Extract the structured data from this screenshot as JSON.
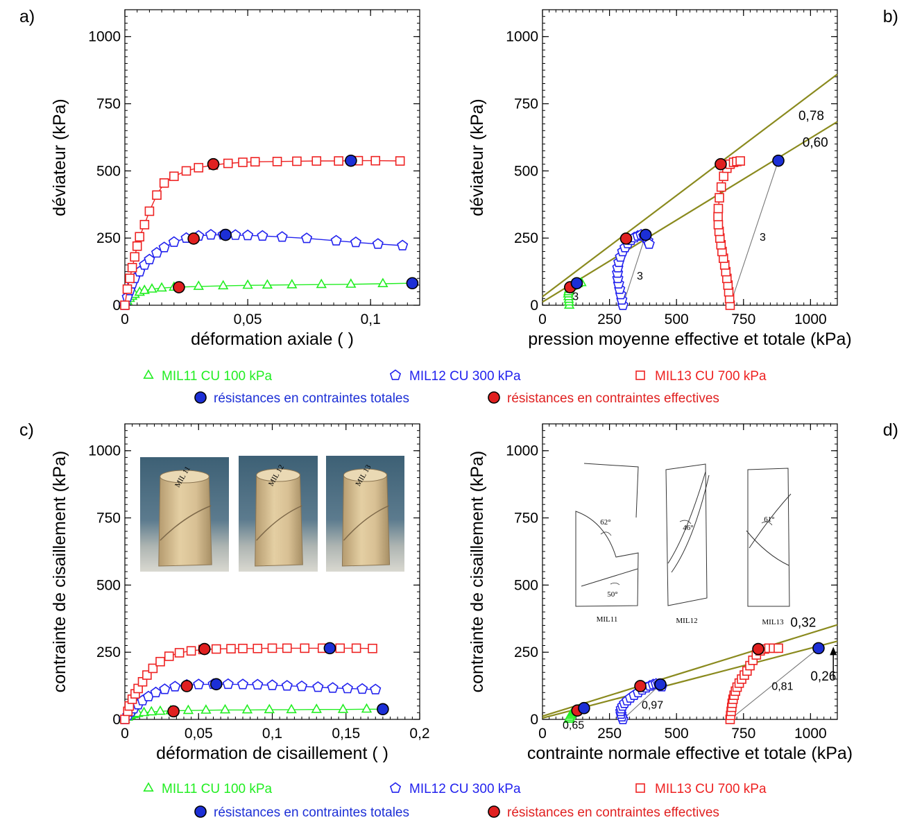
{
  "colors": {
    "MIL11": "#22ee22",
    "MIL12": "#2222ee",
    "MIL13": "#ee2222",
    "total": "#1c2fd6",
    "effective": "#e02020",
    "envelope": "#8a8a1e",
    "pointer": "#777777"
  },
  "legend": {
    "mil11": "MIL11  CU  100 kPa",
    "mil12": "MIL12  CU  300 kPa",
    "mil13": "MIL13  CU  700 kPa",
    "total": "résistances en contraintes totales",
    "effective": "résistances en contraintes effectives"
  },
  "chart_data": [
    {
      "id": "a",
      "panel_label": "a)",
      "type": "line",
      "xlabel": "déformation axiale ( )",
      "ylabel": "déviateur (kPa)",
      "xlim": [
        0,
        0.12
      ],
      "ylim": [
        0,
        1100
      ],
      "xticks": [
        0,
        0.05,
        0.1
      ],
      "xticklabels": [
        "0",
        "0,05",
        "0,1"
      ],
      "yticks": [
        0,
        250,
        500,
        750,
        1000
      ],
      "yticklabels": [
        "0",
        "250",
        "500",
        "750",
        "1000"
      ],
      "series": [
        {
          "name": "MIL11  CU  100 kPa",
          "key": "MIL11",
          "marker": "triangle",
          "x": [
            0,
            0.001,
            0.002,
            0.003,
            0.004,
            0.006,
            0.008,
            0.011,
            0.015,
            0.02,
            0.03,
            0.04,
            0.05,
            0.058,
            0.068,
            0.08,
            0.092,
            0.105,
            0.117
          ],
          "y": [
            0,
            15,
            25,
            33,
            40,
            48,
            55,
            60,
            64,
            67,
            70,
            72,
            74,
            75,
            76,
            77,
            78,
            80,
            82
          ]
        },
        {
          "name": "MIL12  CU  300 kPa",
          "key": "MIL12",
          "marker": "pentagon",
          "x": [
            0,
            0.001,
            0.002,
            0.003,
            0.004,
            0.006,
            0.008,
            0.01,
            0.013,
            0.016,
            0.02,
            0.025,
            0.03,
            0.035,
            0.04,
            0.045,
            0.05,
            0.056,
            0.064,
            0.074,
            0.086,
            0.094,
            0.103,
            0.113
          ],
          "y": [
            0,
            30,
            55,
            80,
            100,
            125,
            150,
            170,
            195,
            215,
            235,
            250,
            258,
            262,
            262,
            261,
            260,
            258,
            254,
            249,
            240,
            234,
            228,
            222
          ]
        },
        {
          "name": "MIL13  CU  700 kPa",
          "key": "MIL13",
          "marker": "square",
          "x": [
            0,
            0.001,
            0.002,
            0.003,
            0.004,
            0.005,
            0.006,
            0.008,
            0.01,
            0.013,
            0.016,
            0.02,
            0.025,
            0.03,
            0.036,
            0.042,
            0.048,
            0.053,
            0.062,
            0.07,
            0.078,
            0.087,
            0.095,
            0.102,
            0.112
          ],
          "y": [
            0,
            60,
            100,
            140,
            180,
            220,
            255,
            300,
            350,
            410,
            455,
            480,
            500,
            512,
            522,
            528,
            532,
            534,
            535,
            536,
            537,
            537,
            538,
            538,
            537
          ]
        }
      ],
      "total_points": {
        "x": [
          0.117,
          0.041,
          0.092
        ],
        "y": [
          82,
          262,
          538
        ]
      },
      "effective_points": {
        "x": [
          0.022,
          0.028,
          0.036
        ],
        "y": [
          67,
          248,
          525
        ]
      },
      "lines": [],
      "annotations": []
    },
    {
      "id": "b",
      "panel_label": "b)",
      "type": "line",
      "xlabel": "pression moyenne effective et totale (kPa)",
      "ylabel": "déviateur (kPa)",
      "xlim": [
        0,
        1100
      ],
      "ylim": [
        0,
        1100
      ],
      "xticks": [
        0,
        250,
        500,
        750,
        1000
      ],
      "xticklabels": [
        "0",
        "250",
        "500",
        "750",
        "1000"
      ],
      "yticks": [
        0,
        250,
        500,
        750,
        1000
      ],
      "yticklabels": [
        "0",
        "250",
        "500",
        "750",
        "1000"
      ],
      "series": [
        {
          "name": "MIL11  CU  100 kPa",
          "key": "MIL11",
          "marker": "triangle",
          "x": [
            100,
            99,
            98,
            97,
            96,
            97,
            99,
            103,
            110,
            120,
            132,
            145
          ],
          "y": [
            0,
            12,
            22,
            32,
            42,
            50,
            58,
            65,
            70,
            75,
            80,
            84
          ]
        },
        {
          "name": "MIL12  CU  300 kPa",
          "key": "MIL12",
          "marker": "pentagon",
          "x": [
            300,
            296,
            292,
            288,
            284,
            281,
            280,
            281,
            285,
            291,
            299,
            308,
            318,
            330,
            343,
            356,
            368,
            378,
            386,
            393,
            398
          ],
          "y": [
            0,
            20,
            40,
            60,
            80,
            100,
            120,
            140,
            160,
            180,
            200,
            215,
            230,
            242,
            252,
            258,
            262,
            258,
            250,
            240,
            228
          ]
        },
        {
          "name": "MIL13  CU  700 kPa",
          "key": "MIL13",
          "marker": "square",
          "x": [
            700,
            698,
            695,
            692,
            688,
            684,
            680,
            675,
            670,
            666,
            662,
            659,
            656,
            655,
            656,
            660,
            667,
            676,
            688,
            700,
            713,
            725,
            738
          ],
          "y": [
            0,
            25,
            50,
            75,
            100,
            125,
            150,
            175,
            200,
            225,
            250,
            275,
            300,
            330,
            360,
            400,
            440,
            480,
            510,
            525,
            532,
            535,
            537
          ]
        }
      ],
      "total_points": {
        "x": [
          128,
          385,
          880
        ],
        "y": [
          82,
          262,
          538
        ]
      },
      "effective_points": {
        "x": [
          103,
          312,
          665
        ],
        "y": [
          67,
          248,
          525
        ]
      },
      "lines": [
        {
          "kind": "envelope",
          "x": [
            0,
            1100
          ],
          "y": [
            32,
            860
          ]
        },
        {
          "kind": "envelope",
          "x": [
            0,
            1100
          ],
          "y": [
            12,
            683
          ]
        },
        {
          "kind": "pointer",
          "x": [
            100,
            128
          ],
          "y": [
            0,
            82
          ]
        },
        {
          "kind": "pointer",
          "x": [
            300,
            385
          ],
          "y": [
            0,
            262
          ]
        },
        {
          "kind": "pointer",
          "x": [
            700,
            880
          ],
          "y": [
            0,
            538
          ]
        }
      ],
      "annotations": [
        {
          "text": "0,78",
          "x": 955,
          "y": 690,
          "cls": "ann2"
        },
        {
          "text": "0,60",
          "x": 970,
          "y": 590,
          "cls": "ann2"
        },
        {
          "text": "3",
          "x": 112,
          "y": 20,
          "cls": "ann"
        },
        {
          "text": "3",
          "x": 352,
          "y": 95,
          "cls": "ann"
        },
        {
          "text": "3",
          "x": 810,
          "y": 240,
          "cls": "ann"
        }
      ]
    },
    {
      "id": "c",
      "panel_label": "c)",
      "type": "line",
      "xlabel": "déformation de cisaillement ( )",
      "ylabel": "contrainte de cisaillement (kPa)",
      "xlim": [
        0,
        0.2
      ],
      "ylim": [
        0,
        1100
      ],
      "xticks": [
        0,
        0.05,
        0.1,
        0.15,
        0.2
      ],
      "xticklabels": [
        "0",
        "0,05",
        "0,1",
        "0,15",
        "0,2"
      ],
      "yticks": [
        0,
        250,
        500,
        750,
        1000
      ],
      "yticklabels": [
        "0",
        "250",
        "500",
        "750",
        "1000"
      ],
      "series": [
        {
          "name": "MIL11  CU  100 kPa",
          "key": "MIL11",
          "marker": "triangle",
          "x": [
            0,
            0.002,
            0.004,
            0.006,
            0.009,
            0.013,
            0.018,
            0.024,
            0.031,
            0.043,
            0.055,
            0.068,
            0.083,
            0.098,
            0.113,
            0.13,
            0.148,
            0.164,
            0.175
          ],
          "y": [
            0,
            8,
            14,
            18,
            22,
            25,
            28,
            30,
            32,
            33,
            34,
            35,
            35,
            36,
            36,
            37,
            37,
            38,
            38
          ]
        },
        {
          "name": "MIL12  CU  300 kPa",
          "key": "MIL12",
          "marker": "pentagon",
          "x": [
            0,
            0.002,
            0.004,
            0.006,
            0.009,
            0.012,
            0.016,
            0.021,
            0.027,
            0.034,
            0.042,
            0.05,
            0.06,
            0.07,
            0.08,
            0.09,
            0.1,
            0.11,
            0.12,
            0.131,
            0.141,
            0.151,
            0.161,
            0.17
          ],
          "y": [
            0,
            15,
            28,
            40,
            55,
            70,
            85,
            100,
            112,
            122,
            128,
            130,
            131,
            131,
            130,
            129,
            127,
            125,
            123,
            120,
            117,
            115,
            113,
            111
          ]
        },
        {
          "name": "MIL13  CU  700 kPa",
          "key": "MIL13",
          "marker": "square",
          "x": [
            0,
            0.002,
            0.003,
            0.005,
            0.007,
            0.009,
            0.012,
            0.015,
            0.019,
            0.024,
            0.03,
            0.037,
            0.045,
            0.053,
            0.062,
            0.072,
            0.08,
            0.09,
            0.1,
            0.11,
            0.122,
            0.134,
            0.146,
            0.157,
            0.168
          ],
          "y": [
            0,
            30,
            50,
            75,
            95,
            115,
            140,
            165,
            190,
            215,
            235,
            248,
            255,
            260,
            262,
            263,
            264,
            264,
            265,
            265,
            265,
            265,
            265,
            265,
            264
          ]
        }
      ],
      "total_points": {
        "x": [
          0.175,
          0.062,
          0.139
        ],
        "y": [
          38,
          131,
          265
        ]
      },
      "effective_points": {
        "x": [
          0.033,
          0.042,
          0.054
        ],
        "y": [
          30,
          124,
          262
        ]
      },
      "lines": [],
      "annotations": []
    },
    {
      "id": "d",
      "panel_label": "d)",
      "type": "line",
      "xlabel": "contrainte normale effective et totale (kPa)",
      "ylabel": "contrainte de cisaillement (kPa)",
      "xlim": [
        0,
        1100
      ],
      "ylim": [
        0,
        1100
      ],
      "xticks": [
        0,
        250,
        500,
        750,
        1000
      ],
      "xticklabels": [
        "0",
        "250",
        "500",
        "750",
        "1000"
      ],
      "yticks": [
        0,
        250,
        500,
        750,
        1000
      ],
      "yticklabels": [
        "0",
        "250",
        "500",
        "750",
        "1000"
      ],
      "series": [
        {
          "name": "MIL11  CU  100 kPa",
          "key": "MIL11",
          "marker": "triangle",
          "x": [
            100,
            101,
            103,
            106,
            110,
            115,
            121,
            128,
            136,
            145,
            155
          ],
          "y": [
            0,
            6,
            12,
            17,
            22,
            26,
            30,
            33,
            36,
            39,
            42
          ]
        },
        {
          "name": "MIL12  CU  300 kPa",
          "key": "MIL12",
          "marker": "pentagon",
          "x": [
            300,
            296,
            293,
            292,
            294,
            299,
            306,
            316,
            328,
            342,
            357,
            372,
            387,
            401,
            413,
            424,
            433,
            440,
            445
          ],
          "y": [
            0,
            10,
            20,
            30,
            40,
            50,
            60,
            70,
            80,
            90,
            100,
            110,
            118,
            125,
            130,
            132,
            131,
            127,
            122
          ]
        },
        {
          "name": "MIL13  CU  700 kPa",
          "key": "MIL13",
          "marker": "square",
          "x": [
            700,
            702,
            704,
            706,
            708,
            711,
            715,
            720,
            726,
            734,
            743,
            753,
            763,
            774,
            785,
            798,
            812,
            828,
            845,
            862,
            880
          ],
          "y": [
            0,
            15,
            30,
            45,
            60,
            75,
            90,
            105,
            120,
            135,
            150,
            165,
            180,
            200,
            220,
            240,
            255,
            262,
            265,
            265,
            265
          ]
        }
      ],
      "total_points": {
        "x": [
          155,
          440,
          1030
        ],
        "y": [
          42,
          130,
          265
        ]
      },
      "effective_points": {
        "x": [
          130,
          365,
          805
        ],
        "y": [
          33,
          124,
          262
        ]
      },
      "lines": [
        {
          "kind": "envelope",
          "x": [
            0,
            1100
          ],
          "y": [
            12,
            352
          ]
        },
        {
          "kind": "envelope",
          "x": [
            0,
            1100
          ],
          "y": [
            5,
            291
          ]
        },
        {
          "kind": "pointer",
          "x": [
            100,
            155
          ],
          "y": [
            0,
            42
          ]
        },
        {
          "kind": "pointer",
          "x": [
            300,
            440
          ],
          "y": [
            0,
            130
          ]
        },
        {
          "kind": "pointer",
          "x": [
            700,
            1030
          ],
          "y": [
            0,
            265
          ]
        }
      ],
      "annotations": [
        {
          "text": "0,32",
          "x": 925,
          "y": 345,
          "cls": "ann2"
        },
        {
          "text": "0,26",
          "x": 1000,
          "y": 145,
          "cls": "ann2"
        },
        {
          "text": "0,65",
          "x": 75,
          "y": -35,
          "cls": "ann"
        },
        {
          "text": "0,97",
          "x": 370,
          "y": 40,
          "cls": "ann"
        },
        {
          "text": "0,81",
          "x": 855,
          "y": 110,
          "cls": "ann"
        }
      ]
    }
  ],
  "inset_c": {
    "labels": [
      "MIL 11",
      "MIL 12",
      "MIL 13"
    ]
  },
  "inset_d": {
    "labels": [
      "MIL11",
      "MIL12",
      "MIL13"
    ],
    "angles": [
      "62°",
      "50°",
      "46°",
      "61°"
    ]
  }
}
